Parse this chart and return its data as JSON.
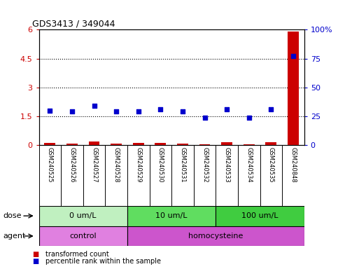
{
  "title": "GDS3413 / 349044",
  "samples": [
    "GSM240525",
    "GSM240526",
    "GSM240527",
    "GSM240528",
    "GSM240529",
    "GSM240530",
    "GSM240531",
    "GSM240532",
    "GSM240533",
    "GSM240534",
    "GSM240535",
    "GSM240848"
  ],
  "transformed_count": [
    0.13,
    0.1,
    0.2,
    0.09,
    0.13,
    0.12,
    0.1,
    0.05,
    0.17,
    0.05,
    0.15,
    5.9
  ],
  "percentile_rank_pct": [
    30,
    29,
    34,
    29,
    29,
    31,
    29,
    24,
    31,
    24,
    31,
    77
  ],
  "ylim_left": [
    0,
    6
  ],
  "ylim_right": [
    0,
    100
  ],
  "yticks_left": [
    0,
    1.5,
    3.0,
    4.5,
    6.0
  ],
  "yticks_right": [
    0,
    25,
    50,
    75,
    100
  ],
  "ytick_labels_left": [
    "0",
    "1.5",
    "3",
    "4.5",
    "6"
  ],
  "ytick_labels_right": [
    "0",
    "25",
    "50",
    "75",
    "100%"
  ],
  "hlines": [
    1.5,
    3.0,
    4.5
  ],
  "dose_groups": [
    {
      "label": "0 um/L",
      "start": 0,
      "end": 4,
      "color": "#c0f0c0"
    },
    {
      "label": "10 um/L",
      "start": 4,
      "end": 8,
      "color": "#60dd60"
    },
    {
      "label": "100 um/L",
      "start": 8,
      "end": 12,
      "color": "#40cc40"
    }
  ],
  "agent_groups": [
    {
      "label": "control",
      "start": 0,
      "end": 4,
      "color": "#e080e0"
    },
    {
      "label": "homocysteine",
      "start": 4,
      "end": 12,
      "color": "#cc55cc"
    }
  ],
  "bar_color": "#cc0000",
  "dot_color": "#0000cc",
  "bar_width": 0.5,
  "dot_size": 20,
  "legend_items": [
    {
      "color": "#cc0000",
      "label": "transformed count"
    },
    {
      "color": "#0000cc",
      "label": "percentile rank within the sample"
    }
  ],
  "left_axis_color": "#cc0000",
  "right_axis_color": "#0000cc",
  "background_color": "#ffffff",
  "tick_label_area_color": "#c8c8c8"
}
